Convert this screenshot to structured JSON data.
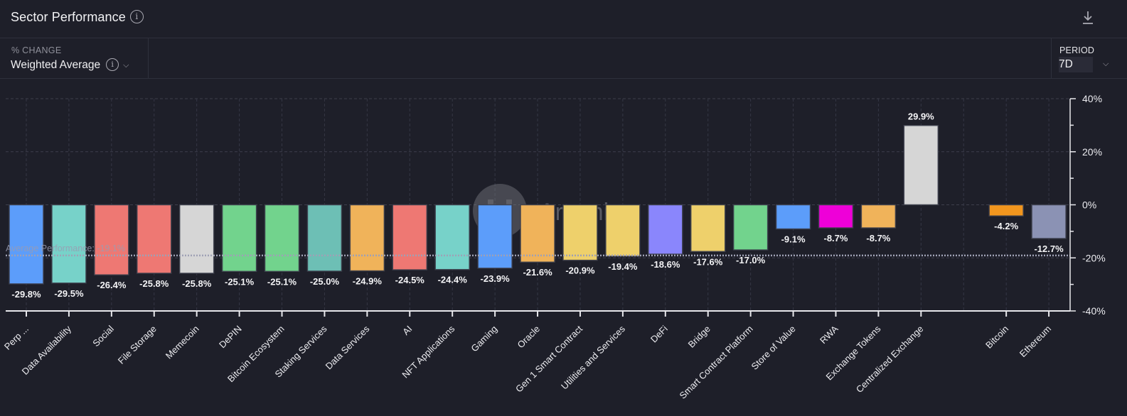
{
  "header": {
    "title": "Sector Performance",
    "title_info_icon": "info-icon",
    "download_icon": "download-icon"
  },
  "controls": {
    "metric_caption": "% CHANGE",
    "metric_value": "Weighted Average",
    "period_caption": "PERIOD",
    "period_value": "7D"
  },
  "watermark": "Artemis",
  "chart_data": {
    "type": "bar",
    "title": "Sector Performance",
    "xlabel": "",
    "ylabel": "% Change",
    "ylim": [
      -40,
      40
    ],
    "y_ticks": [
      -40,
      -20,
      0,
      20,
      40
    ],
    "y_tick_labels": [
      "-40%",
      "-20%",
      "0%",
      "20%",
      "40%"
    ],
    "y_axis_position": "right",
    "grid": true,
    "categories": [
      "Perp ...",
      "Data Availability",
      "Social",
      "File Storage",
      "Memecoin",
      "DePIN",
      "Bitcoin Ecosystem",
      "Staking Services",
      "Data Services",
      "AI",
      "NFT Applications",
      "Gaming",
      "Oracle",
      "Gen 1 Smart Contract",
      "Utilities and Services",
      "DeFi",
      "Bridge",
      "Smart Contract Platform",
      "Store of Value",
      "RWA",
      "Exchange Tokens",
      "Centralized Exchange",
      "",
      "Bitcoin",
      "Ethereum"
    ],
    "values": [
      -29.8,
      -29.5,
      -26.4,
      -25.8,
      -25.8,
      -25.1,
      -25.1,
      -25.0,
      -24.9,
      -24.5,
      -24.4,
      -23.9,
      -21.6,
      -20.9,
      -19.4,
      -18.6,
      -17.6,
      -17.0,
      -9.1,
      -8.7,
      -8.7,
      29.9,
      null,
      -4.2,
      -12.7
    ],
    "value_labels": [
      "-29.8%",
      "-29.5%",
      "-26.4%",
      "-25.8%",
      "-25.8%",
      "-25.1%",
      "-25.1%",
      "-25.0%",
      "-24.9%",
      "-24.5%",
      "-24.4%",
      "-23.9%",
      "-21.6%",
      "-20.9%",
      "-19.4%",
      "-18.6%",
      "-17.6%",
      "-17.0%",
      "-9.1%",
      "-8.7%",
      "-8.7%",
      "29.9%",
      "",
      "-4.2%",
      "-12.7%"
    ],
    "colors": [
      "#5c9dfa",
      "#77d2c9",
      "#ee7873",
      "#ee7873",
      "#d6d6d6",
      "#72d38d",
      "#72d38d",
      "#6dbfb5",
      "#f0b35a",
      "#ee7873",
      "#77d2c9",
      "#5c9dfa",
      "#f0b35a",
      "#eed06b",
      "#eed06b",
      "#8a86fc",
      "#eed06b",
      "#72d38d",
      "#5c9dfa",
      "#ee00d8",
      "#f0b35a",
      "#d6d6d6",
      "",
      "#f2961e",
      "#8b92b4"
    ],
    "average": {
      "value": -19.1,
      "label": "Average Performance: -19.1%"
    }
  }
}
